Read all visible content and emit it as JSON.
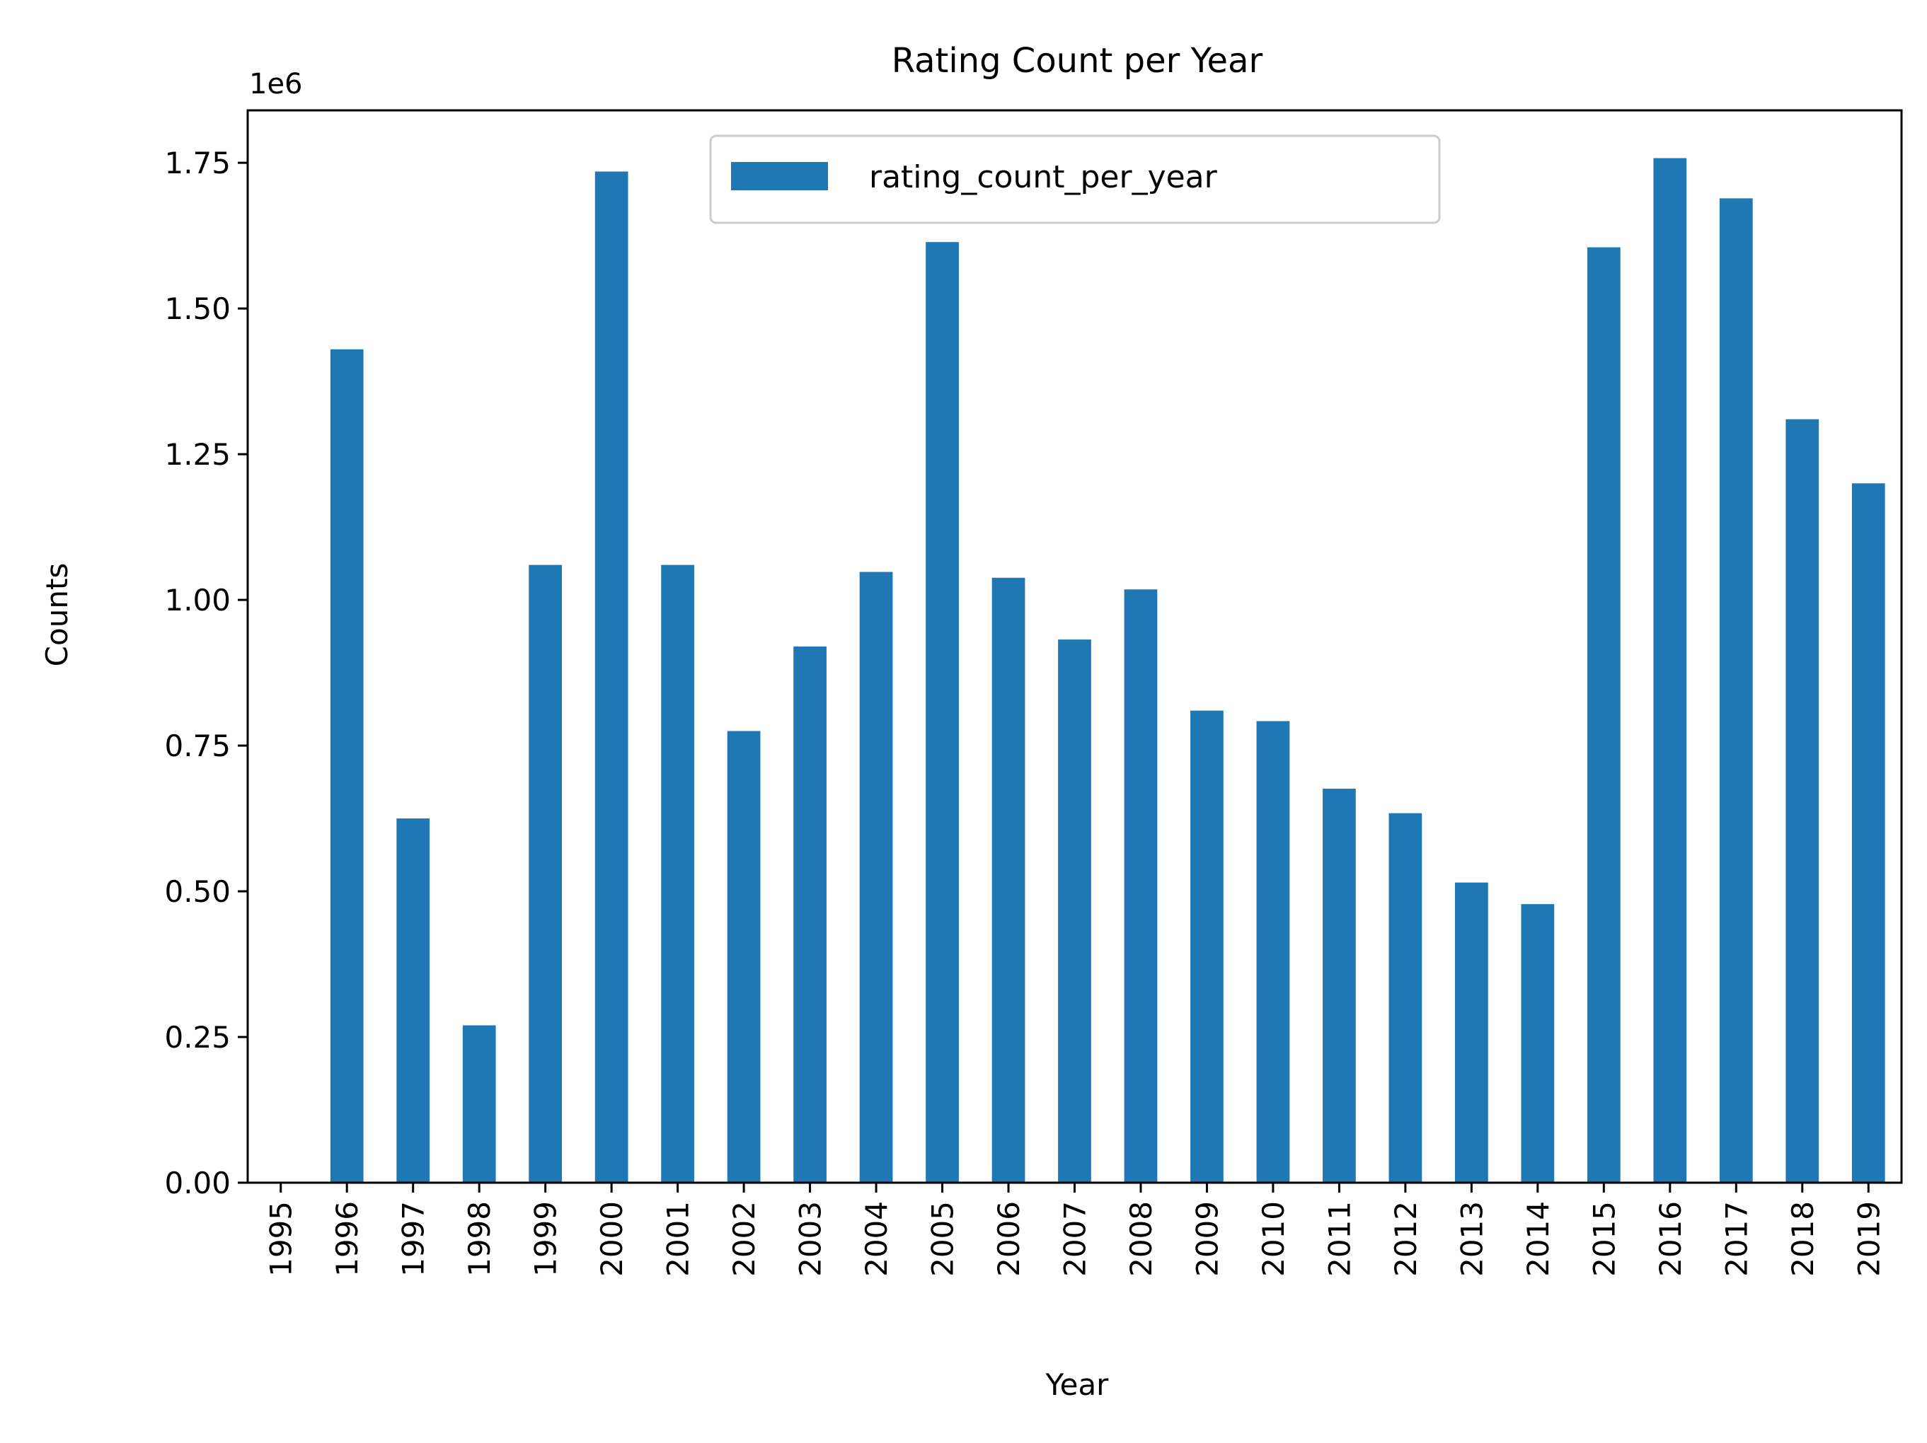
{
  "chart_data": {
    "type": "bar",
    "title": "Rating Count per Year",
    "xlabel": "Year",
    "ylabel": "Counts",
    "y_offset_label": "1e6",
    "ylim": [
      0,
      1.84
    ],
    "yticks": [
      0.0,
      0.25,
      0.5,
      0.75,
      1.0,
      1.25,
      1.5,
      1.75
    ],
    "ytick_labels": [
      "0.00",
      "0.25",
      "0.50",
      "0.75",
      "1.00",
      "1.25",
      "1.50",
      "1.75"
    ],
    "y_scale": 1000000,
    "categories": [
      "1995",
      "1996",
      "1997",
      "1998",
      "1999",
      "2000",
      "2001",
      "2002",
      "2003",
      "2004",
      "2005",
      "2006",
      "2007",
      "2008",
      "2009",
      "2010",
      "2011",
      "2012",
      "2013",
      "2014",
      "2015",
      "2016",
      "2017",
      "2018",
      "2019"
    ],
    "series": [
      {
        "name": "rating_count_per_year",
        "color": "#1f77b4",
        "values": [
          0,
          1430000,
          625000,
          270000,
          1060000,
          1735000,
          1060000,
          775000,
          920000,
          1048000,
          1614000,
          1038000,
          932000,
          1018000,
          810000,
          792000,
          676000,
          634000,
          515000,
          478000,
          1605000,
          1758000,
          1689000,
          1310000,
          1200000
        ]
      }
    ],
    "legend": {
      "position": "upper-center"
    },
    "grid": false
  }
}
